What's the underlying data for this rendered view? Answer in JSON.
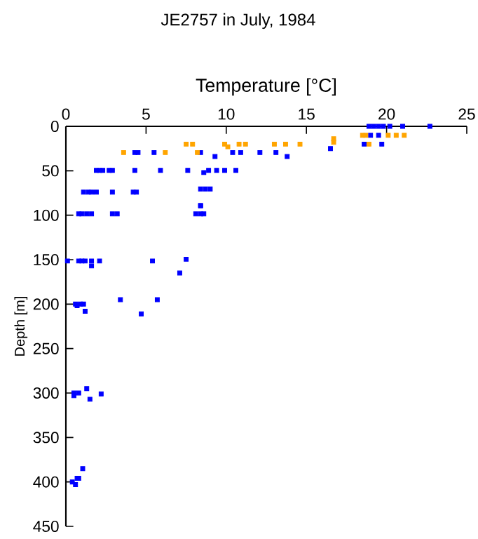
{
  "chart_data": {
    "type": "scatter",
    "title": "JE2757 in July, 1984",
    "xlabel": "Temperature [°C]",
    "ylabel": "Depth [m]",
    "xlim": [
      0,
      25
    ],
    "xticks": [
      0,
      5,
      10,
      15,
      20,
      25
    ],
    "ylim": [
      450,
      0
    ],
    "yticks": [
      0,
      50,
      100,
      150,
      200,
      250,
      300,
      350,
      400,
      450
    ],
    "marker": "square",
    "grid": false,
    "series": [
      {
        "color": "#0000ff",
        "x": [
          18.9,
          19.2,
          19.5,
          19.8,
          20.2,
          21.0,
          22.7,
          19.0,
          19.5,
          18.6,
          19.7,
          16.5,
          4.3,
          4.5,
          5.5,
          8.4,
          10.4,
          10.9,
          12.1,
          13.1,
          9.3,
          13.8,
          1.9,
          2.1,
          2.3,
          2.7,
          2.9,
          4.3,
          5.9,
          7.6,
          8.6,
          8.9,
          9.4,
          9.9,
          10.6,
          1.1,
          1.4,
          1.6,
          1.9,
          2.9,
          4.2,
          4.4,
          8.4,
          8.7,
          9.0,
          8.4,
          0.8,
          1.0,
          1.3,
          1.6,
          2.9,
          3.2,
          8.1,
          8.4,
          8.6,
          8.4,
          0.1,
          0.8,
          1.0,
          1.2,
          1.6,
          2.1,
          5.4,
          7.5,
          1.6,
          7.1,
          3.4,
          5.7,
          0.6,
          0.9,
          1.1,
          0.7,
          1.2,
          4.7,
          0.5,
          0.8,
          2.2,
          1.3,
          1.5,
          0.5,
          1.05,
          0.7,
          0.8,
          0.4,
          0.6
        ],
        "values": [
          0,
          0,
          0,
          0,
          0,
          0,
          0,
          10,
          10,
          20,
          20,
          25,
          29.5,
          29.5,
          29.5,
          29.5,
          29.5,
          29.5,
          29.5,
          29.5,
          34,
          34,
          49.5,
          49.5,
          49.5,
          49.5,
          49.5,
          49.5,
          49.5,
          49.5,
          52,
          49.5,
          49.5,
          49.5,
          49.5,
          74,
          74,
          74,
          74,
          74,
          74,
          74,
          70.5,
          70.5,
          70.5,
          89.5,
          98.5,
          98.5,
          98.5,
          98.5,
          98.5,
          98.5,
          98.5,
          98.5,
          98.5,
          89,
          151.5,
          151.5,
          151.5,
          151.5,
          151.5,
          151.5,
          151.5,
          149.5,
          157,
          165,
          195,
          195,
          200,
          200,
          200,
          201.7,
          208,
          211,
          300,
          300,
          301,
          295,
          307,
          303,
          385,
          396,
          396,
          400,
          403
        ]
      },
      {
        "color": "#ffa500",
        "x": [
          18.5,
          18.7,
          20.1,
          20.6,
          21.1,
          16.7,
          16.7,
          18.9,
          7.5,
          7.9,
          9.9,
          10.8,
          11.2,
          13.0,
          13.7,
          14.6,
          10.1,
          3.6,
          6.2,
          8.2
        ],
        "values": [
          10,
          10,
          10,
          10,
          10,
          14,
          18,
          20,
          20,
          20,
          20,
          20,
          20,
          20,
          20,
          20,
          23,
          29.5,
          29.5,
          29.5
        ]
      }
    ]
  }
}
